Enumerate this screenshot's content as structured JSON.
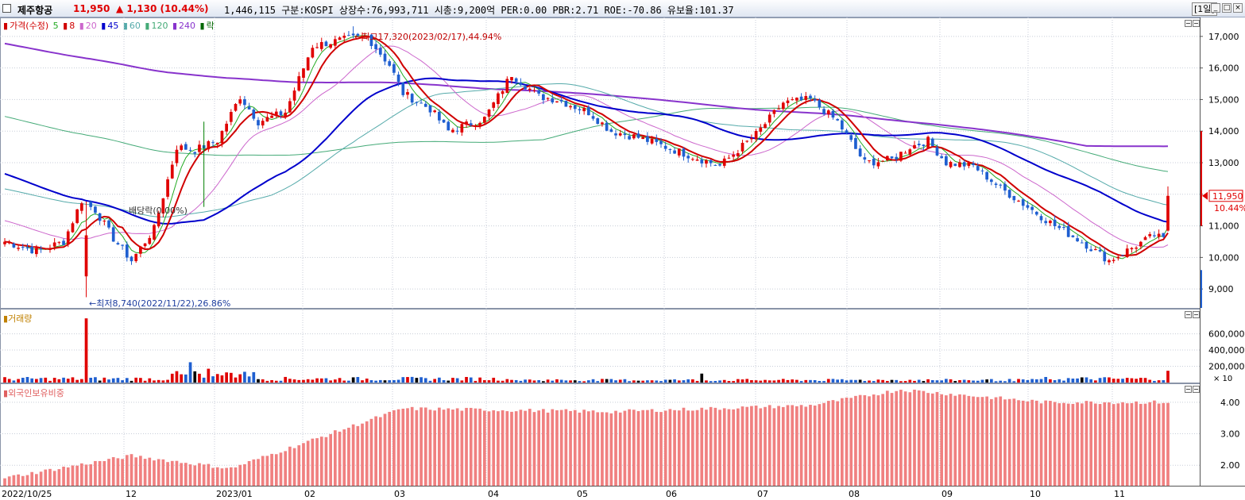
{
  "titlebar": {
    "name": "제주항공",
    "price": "11,950",
    "change": "▲ 1,130  (10.44%)",
    "info": "1,446,115  구분:KOSPI  상장수:76,993,711  시총:9,200억  PER:0.00  PBR:2.71  ROE:-70.86  유보율:101.37",
    "period": "[1일]",
    "buttons": [
      "_",
      "□",
      "×"
    ]
  },
  "legend": {
    "items": [
      {
        "label": "가격(수정)",
        "color": "#d00000"
      },
      {
        "label": "5",
        "color": "#22aa22"
      },
      {
        "label": "8",
        "color": "#d00000"
      },
      {
        "label": "20",
        "color": "#cc66cc"
      },
      {
        "label": "45",
        "color": "#0000cc"
      },
      {
        "label": "60",
        "color": "#55aaaa"
      },
      {
        "label": "120",
        "color": "#44aa77"
      },
      {
        "label": "240",
        "color": "#8833cc"
      },
      {
        "label": "락",
        "color": "#006600"
      }
    ]
  },
  "annotations": {
    "high": "←최고17,320(2023/02/17),44.94%",
    "low": "←최저8,740(2022/11/22),26.86%",
    "dividend": "배당락(0.00%)"
  },
  "current": {
    "price": "11,950",
    "pct": "10.44%"
  },
  "volume_panel": {
    "title": "거래량",
    "scale_note": "× 10"
  },
  "foreign_panel": {
    "title": "외국인보유비중"
  },
  "colors": {
    "up": "#e00000",
    "down": "#1f5fd0",
    "ma5": "#22aa22",
    "ma8": "#d00000",
    "ma20": "#cc66cc",
    "ma45": "#0000cc",
    "ma60": "#55aaaa",
    "ma120": "#44aa77",
    "ma240": "#8833cc",
    "foreign": "#f08080"
  },
  "chart_data": [
    {
      "type": "candlestick",
      "title": "가격(수정)",
      "x_ticks": [
        "2022/10/25",
        "12",
        "2023/01",
        "02",
        "03",
        "04",
        "05",
        "06",
        "07",
        "08",
        "09",
        "10",
        "11"
      ],
      "y_ticks": [
        "17,000",
        "16,000",
        "15,000",
        "14,000",
        "13,000",
        "12,000",
        "11,000",
        "10,000",
        "9,000"
      ],
      "ylim": [
        8400,
        17600
      ],
      "last_close": 11950,
      "high": {
        "value": 17320,
        "date": "2023/02/17"
      },
      "low": {
        "value": 8740,
        "date": "2022/11/22"
      },
      "closes_approx": [
        {
          "month": "2022/10/25",
          "value": 10500
        },
        {
          "month": "11",
          "value": 11300
        },
        {
          "month": "12",
          "value": 13200
        },
        {
          "month": "2023/01",
          "value": 14400
        },
        {
          "month": "02",
          "value": 16800
        },
        {
          "month": "03",
          "value": 14900
        },
        {
          "month": "04",
          "value": 15000
        },
        {
          "month": "05",
          "value": 13600
        },
        {
          "month": "06",
          "value": 13400
        },
        {
          "month": "07",
          "value": 14600
        },
        {
          "month": "08",
          "value": 13000
        },
        {
          "month": "09",
          "value": 11200
        },
        {
          "month": "10",
          "value": 9900
        },
        {
          "month": "11",
          "value": 10700
        },
        {
          "month": "last",
          "value": 11950
        }
      ],
      "series": [
        {
          "name": "240",
          "values": [
            16500,
            15300,
            14100,
            13700
          ]
        },
        {
          "name": "45",
          "values": [
            13400,
            11200,
            15900,
            14100,
            10700
          ]
        }
      ]
    },
    {
      "type": "bar",
      "title": "거래량",
      "y_ticks": [
        "600,000",
        "400,000",
        "200,000"
      ],
      "ylim": [
        0,
        850000
      ],
      "peaks": [
        {
          "date": "2022/11/22",
          "value": 790000
        },
        {
          "date": "last",
          "value": 145000
        }
      ]
    },
    {
      "type": "bar",
      "title": "외국인보유비중",
      "y_ticks": [
        "4.00",
        "3.00",
        "2.00"
      ],
      "ylim": [
        1.35,
        4.6
      ],
      "values_approx": [
        {
          "month": "2022/10/25",
          "value": 1.6
        },
        {
          "month": "12",
          "value": 2.3
        },
        {
          "month": "2023/01",
          "value": 1.9
        },
        {
          "month": "03",
          "value": 3.8
        },
        {
          "month": "05",
          "value": 3.7
        },
        {
          "month": "07",
          "value": 3.9
        },
        {
          "month": "08",
          "value": 4.4
        },
        {
          "month": "10",
          "value": 4.0
        },
        {
          "month": "11",
          "value": 4.0
        }
      ]
    }
  ]
}
